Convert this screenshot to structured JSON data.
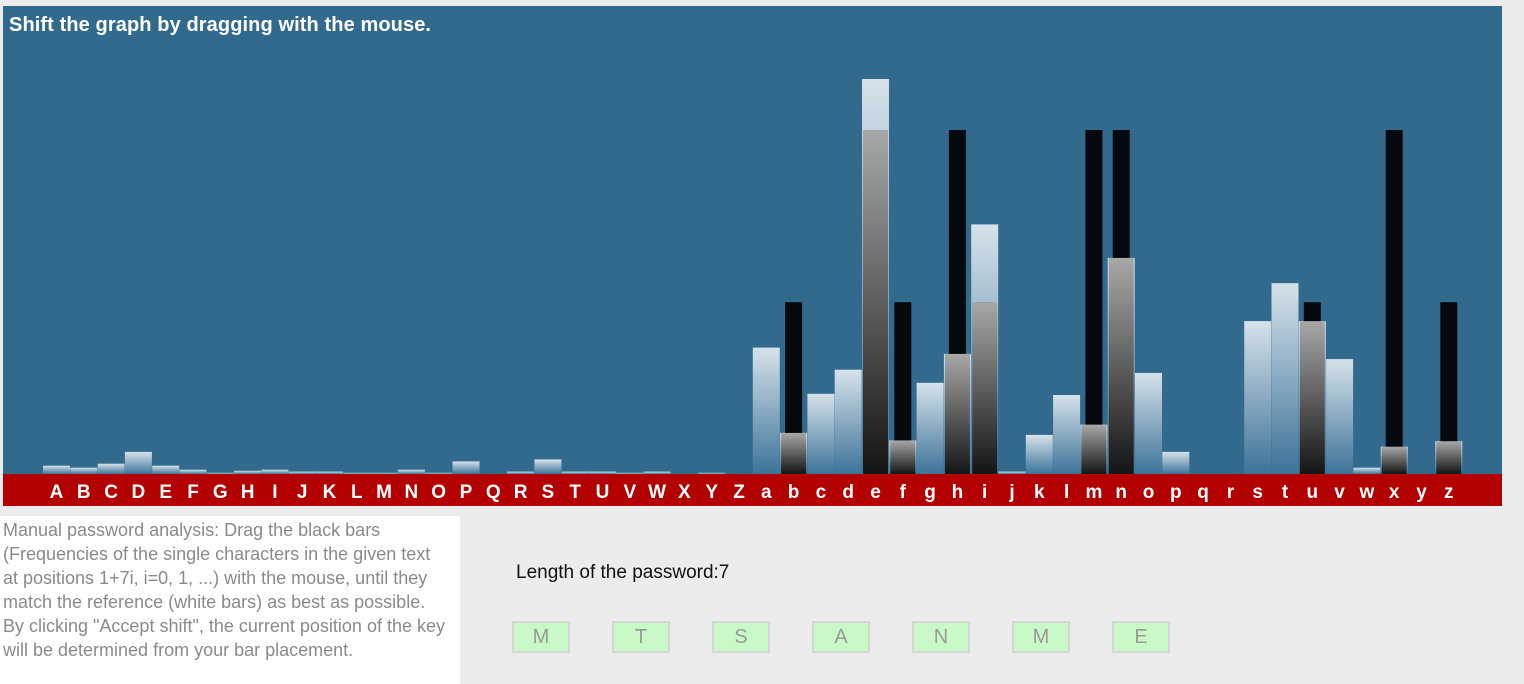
{
  "instruction": "Shift the graph by dragging with the mouse.",
  "colors": {
    "panel": "#326a8e",
    "letters_bar": "#b30000",
    "reference_bar": "white-to-blue gradient",
    "drag_bar": "#05090d",
    "key_box": "#c8f9c6"
  },
  "chart_data": {
    "type": "bar",
    "categories": [
      "A",
      "B",
      "C",
      "D",
      "E",
      "F",
      "G",
      "H",
      "I",
      "J",
      "K",
      "L",
      "M",
      "N",
      "O",
      "P",
      "Q",
      "R",
      "S",
      "T",
      "U",
      "V",
      "W",
      "X",
      "Y",
      "Z",
      "a",
      "b",
      "c",
      "d",
      "e",
      "f",
      "g",
      "h",
      "i",
      "j",
      "k",
      "l",
      "m",
      "n",
      "o",
      "p",
      "q",
      "r",
      "s",
      "t",
      "u",
      "v",
      "w",
      "x",
      "y",
      "z"
    ],
    "series": [
      {
        "role": "reference",
        "values": [
          2.1,
          1.6,
          2.6,
          5.6,
          2.1,
          1.1,
          0.3,
          0.8,
          1.1,
          0.6,
          0.6,
          0.3,
          0.3,
          1.1,
          0.3,
          3.2,
          0,
          0.6,
          3.7,
          0.6,
          0.6,
          0.3,
          0.6,
          0,
          0.3,
          0,
          32,
          10.4,
          20.3,
          26.4,
          100,
          8.5,
          23.1,
          30.4,
          63.2,
          0.6,
          9.9,
          20,
          12.5,
          54.7,
          25.6,
          5.6,
          0,
          0,
          38.7,
          48.3,
          38.7,
          29.1,
          1.6,
          6.9,
          0,
          8.3
        ]
      },
      {
        "role": "drag",
        "values": [
          0,
          0,
          0,
          0,
          0,
          0,
          0,
          0,
          0,
          0,
          0,
          0,
          0,
          0,
          0,
          0,
          0,
          0,
          0,
          0,
          0,
          0,
          0,
          0,
          0,
          0,
          0,
          43.5,
          0,
          0,
          87.1,
          43.5,
          0,
          87.1,
          43.5,
          0,
          0,
          0,
          87.1,
          87.1,
          0,
          0,
          0,
          0,
          0,
          0,
          43.5,
          0,
          0,
          87.1,
          0,
          43.5
        ]
      }
    ],
    "ylim": [
      0,
      100
    ],
    "legend": "none"
  },
  "help_text": "Manual password analysis: Drag the black bars (Frequencies of the single characters in the given text at positions 1+7i, i=0, 1, ...) with the mouse, until they match the reference (white bars) as best as possible. By clicking \"Accept shift\", the current position of the key will be determined from your bar placement.",
  "password": {
    "length_label": "Length of the password:7",
    "keys": [
      "M",
      "T",
      "S",
      "A",
      "N",
      "M",
      "E"
    ]
  }
}
